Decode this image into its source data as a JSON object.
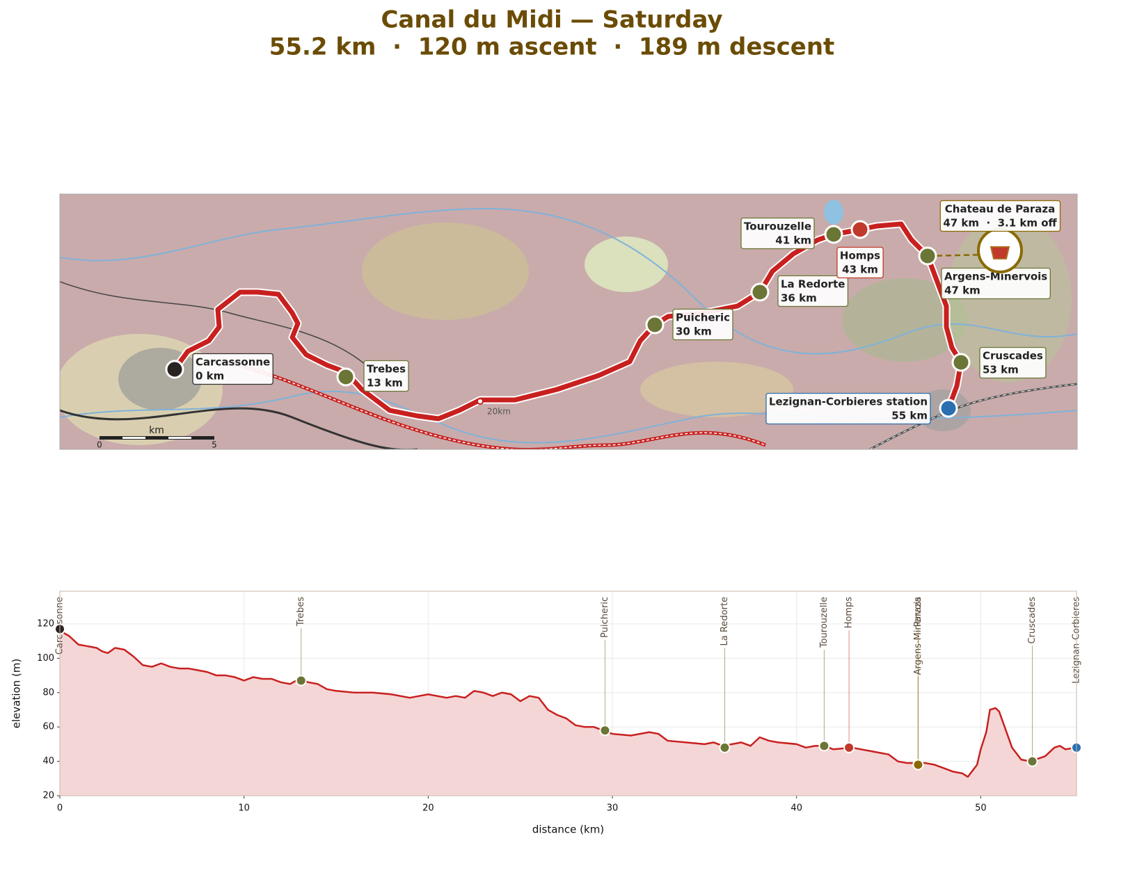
{
  "title": "Canal du Midi — Saturday",
  "subtitle": "55.2 km  ·  120 m ascent  ·  189 m descent",
  "map": {
    "waypoints": [
      {
        "name": "Carcassonne",
        "label": "0 km",
        "color": "#2b2222"
      },
      {
        "name": "Trebes",
        "label": "13 km",
        "color": "#6b7535"
      },
      {
        "name": "Puicheric",
        "label": "30 km",
        "color": "#6b7535"
      },
      {
        "name": "La Redorte",
        "label": "36 km",
        "color": "#6b7535"
      },
      {
        "name": "Tourouzelle",
        "label": "41 km",
        "color": "#6b7535"
      },
      {
        "name": "Homps",
        "label": "43 km",
        "color": "#c0392b"
      },
      {
        "name": "Argens-Minervois",
        "label": "47 km",
        "color": "#6b7535"
      },
      {
        "name": "Cruscades",
        "label": "53 km",
        "color": "#6b7535"
      },
      {
        "name": "Lezignan-Corbieres station",
        "label": "55 km",
        "color": "#2a6fb0"
      }
    ],
    "poi": {
      "name": "Chateau de Paraza",
      "label": "47 km  ·  3.1 km off",
      "color": "#8a6a00"
    },
    "distance_marker": "20km",
    "scale": {
      "unit": "km",
      "ticks": [
        0,
        5
      ]
    }
  },
  "chart_data": {
    "type": "area",
    "x_label": "distance (km)",
    "y_label": "elevation (m)",
    "x": [
      0,
      0.5,
      1,
      1.5,
      2,
      2.3,
      2.6,
      3,
      3.5,
      4,
      4.5,
      5,
      5.5,
      6,
      6.5,
      7,
      7.5,
      8,
      8.5,
      9,
      9.5,
      10,
      10.5,
      11,
      11.5,
      12,
      12.5,
      13,
      13.5,
      14,
      14.5,
      15,
      16,
      17,
      18,
      19,
      19.5,
      20,
      21,
      21.5,
      22,
      22.5,
      23,
      23.5,
      24,
      24.5,
      25,
      25.5,
      26,
      26.5,
      27,
      27.5,
      28,
      28.5,
      29,
      29.5,
      30,
      31,
      32,
      32.5,
      33,
      34,
      35,
      35.5,
      36,
      36.5,
      37,
      37.5,
      38,
      38.5,
      39,
      40,
      40.5,
      41,
      41.5,
      42,
      43,
      43.5,
      44,
      45,
      45.5,
      46,
      47,
      47.5,
      48,
      48.5,
      49,
      49.3,
      49.8,
      50,
      50.3,
      50.5,
      50.8,
      51,
      51.3,
      51.7,
      52.2,
      52.7,
      53.5,
      54,
      54.3,
      54.6,
      55.2
    ],
    "values": [
      116,
      113,
      108,
      107,
      106,
      104,
      103,
      106,
      105,
      101,
      96,
      95,
      97,
      95,
      94,
      94,
      93,
      92,
      90,
      90,
      89,
      87,
      89,
      88,
      88,
      86,
      85,
      88,
      86,
      85,
      82,
      81,
      80,
      80,
      79,
      77,
      78,
      79,
      77,
      78,
      77,
      81,
      80,
      78,
      80,
      79,
      75,
      78,
      77,
      70,
      67,
      65,
      61,
      60,
      60,
      58,
      56,
      55,
      57,
      56,
      52,
      51,
      50,
      51,
      49,
      50,
      51,
      49,
      54,
      52,
      51,
      50,
      48,
      49,
      49,
      47,
      48,
      47,
      46,
      44,
      40,
      39,
      39,
      38,
      36,
      34,
      33,
      31,
      38,
      47,
      57,
      70,
      71,
      69,
      60,
      48,
      41,
      40,
      43,
      48,
      49,
      47,
      48
    ],
    "color": "#c8201f",
    "fill": "#f5d6d6",
    "xlim": [
      0,
      55.2
    ],
    "ylim": [
      20,
      139
    ],
    "xticks": [
      0,
      10,
      20,
      30,
      40,
      50
    ],
    "yticks": [
      20,
      40,
      60,
      80,
      100,
      120
    ],
    "grid": true,
    "markers": [
      {
        "name": "Carcassonne",
        "x": 0,
        "y": 117,
        "color": "#2b2222"
      },
      {
        "name": "Trebes",
        "x": 13.1,
        "y": 87,
        "color": "#6b7535"
      },
      {
        "name": "Puicheric",
        "x": 29.6,
        "y": 58,
        "color": "#6b7535"
      },
      {
        "name": "La Redorte",
        "x": 36.1,
        "y": 48,
        "color": "#6b7535"
      },
      {
        "name": "Tourouzelle",
        "x": 41.5,
        "y": 49,
        "color": "#6b7535"
      },
      {
        "name": "Homps",
        "x": 42.85,
        "y": 48,
        "color": "#c0392b"
      },
      {
        "name": "Argens-Minervois",
        "x": 46.6,
        "y": 38,
        "color": "#6b7535"
      },
      {
        "name": "Paraza",
        "x": 46.6,
        "y": 38,
        "color": "#8a6a00"
      },
      {
        "name": "Cruscades",
        "x": 52.8,
        "y": 40,
        "color": "#6b7535"
      },
      {
        "name": "Lezignan-Corbieres",
        "x": 55.2,
        "y": 48,
        "color": "#2a6fb0"
      }
    ]
  }
}
